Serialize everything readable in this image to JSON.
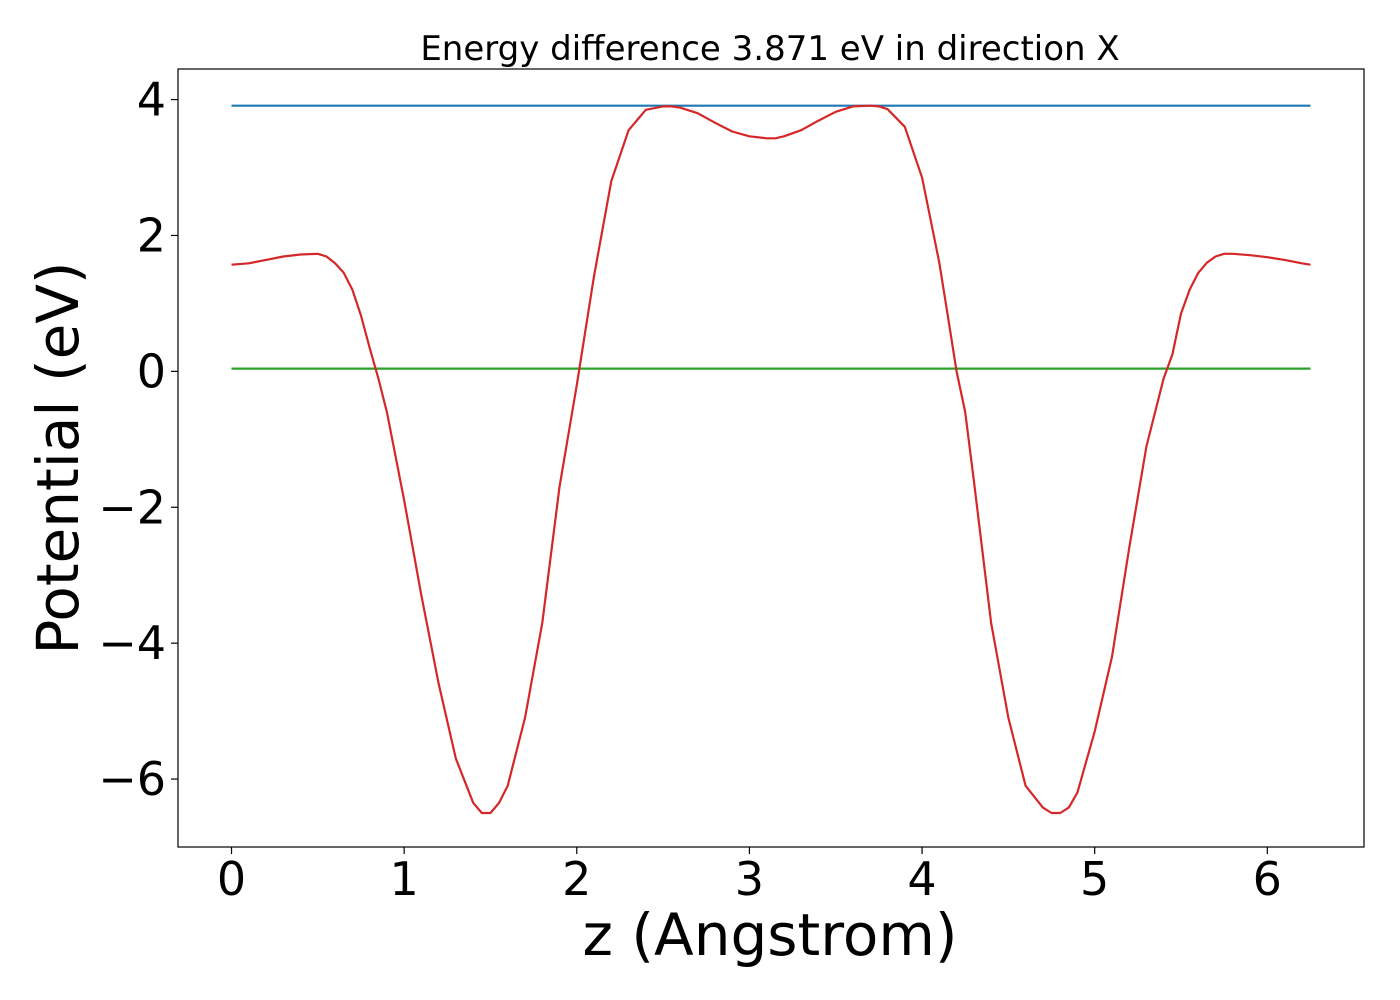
{
  "chart_data": {
    "type": "line",
    "title": "Energy difference 3.871 eV in direction X",
    "xlabel": "z (Angstrom)",
    "ylabel": "Potential (eV)",
    "xlim": [
      -0.31,
      6.56
    ],
    "ylim": [
      -7.0,
      4.45
    ],
    "xticks": [
      0,
      1,
      2,
      3,
      4,
      5,
      6
    ],
    "yticks": [
      -6,
      -4,
      -2,
      0,
      2,
      4
    ],
    "xtick_labels": [
      "0",
      "1",
      "2",
      "3",
      "4",
      "5",
      "6"
    ],
    "ytick_labels": [
      "−6",
      "−4",
      "−2",
      "0",
      "2",
      "4"
    ],
    "grid": false,
    "series": [
      {
        "color": "#1f77b4",
        "x": [
          0.0,
          6.25
        ],
        "values": [
          3.91,
          3.91
        ]
      },
      {
        "color": "#2ca02c",
        "x": [
          0.0,
          6.25
        ],
        "values": [
          0.04,
          0.04
        ]
      },
      {
        "color": "#d62728",
        "x": [
          0.0,
          0.1,
          0.2,
          0.3,
          0.4,
          0.5,
          0.55,
          0.6,
          0.65,
          0.7,
          0.75,
          0.8,
          0.85,
          0.9,
          1.0,
          1.1,
          1.2,
          1.3,
          1.4,
          1.45,
          1.5,
          1.55,
          1.6,
          1.7,
          1.8,
          1.9,
          2.0,
          2.05,
          2.1,
          2.2,
          2.3,
          2.4,
          2.5,
          2.55,
          2.6,
          2.7,
          2.8,
          2.9,
          3.0,
          3.1,
          3.15,
          3.2,
          3.3,
          3.4,
          3.5,
          3.6,
          3.7,
          3.75,
          3.8,
          3.9,
          4.0,
          4.1,
          4.15,
          4.2,
          4.25,
          4.3,
          4.4,
          4.5,
          4.6,
          4.7,
          4.75,
          4.8,
          4.85,
          4.9,
          5.0,
          5.1,
          5.2,
          5.3,
          5.4,
          5.45,
          5.5,
          5.55,
          5.6,
          5.65,
          5.7,
          5.75,
          5.8,
          5.9,
          6.0,
          6.1,
          6.2,
          6.25
        ],
        "values": [
          1.57,
          1.59,
          1.64,
          1.69,
          1.72,
          1.73,
          1.69,
          1.59,
          1.45,
          1.2,
          0.82,
          0.35,
          -0.1,
          -0.6,
          -1.9,
          -3.3,
          -4.6,
          -5.7,
          -6.35,
          -6.5,
          -6.5,
          -6.35,
          -6.1,
          -5.1,
          -3.7,
          -1.7,
          -0.2,
          0.6,
          1.4,
          2.8,
          3.55,
          3.85,
          3.9,
          3.9,
          3.88,
          3.8,
          3.66,
          3.53,
          3.46,
          3.43,
          3.43,
          3.46,
          3.55,
          3.69,
          3.82,
          3.9,
          3.91,
          3.9,
          3.86,
          3.6,
          2.85,
          1.6,
          0.8,
          0.0,
          -0.6,
          -1.6,
          -3.7,
          -5.1,
          -6.1,
          -6.42,
          -6.5,
          -6.5,
          -6.42,
          -6.2,
          -5.3,
          -4.2,
          -2.6,
          -1.1,
          -0.1,
          0.25,
          0.85,
          1.2,
          1.45,
          1.6,
          1.69,
          1.73,
          1.73,
          1.71,
          1.68,
          1.64,
          1.59,
          1.57
        ]
      }
    ]
  }
}
